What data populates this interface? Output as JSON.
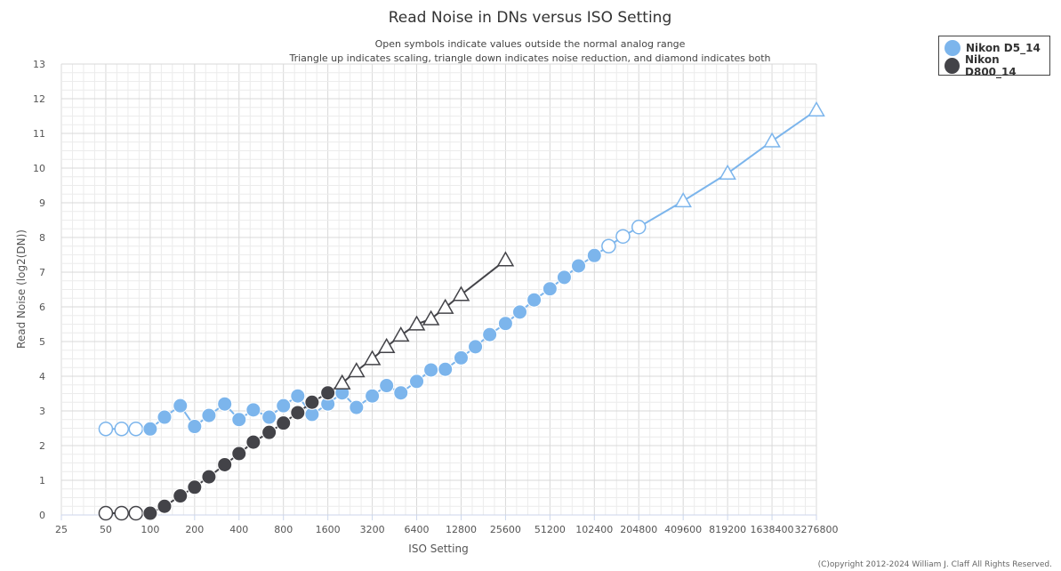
{
  "chart_data": {
    "type": "line",
    "title": "Read Noise in DNs versus ISO Setting",
    "subtitle_lines": [
      "Open symbols indicate values outside the normal analog range",
      "Triangle up indicates scaling, triangle down indicates noise reduction, and diamond indicates both"
    ],
    "xlabel": "ISO Setting",
    "ylabel": "Read Noise (log2(DN))",
    "x_scale": "log2",
    "x_ticks": [
      "25",
      "50",
      "100",
      "200",
      "400",
      "800",
      "1600",
      "3200",
      "6400",
      "12800",
      "25600",
      "51200",
      "102400",
      "204800",
      "409600",
      "819200",
      "1638400",
      "3276800"
    ],
    "ylim": [
      0,
      13
    ],
    "y_ticks": [
      0,
      1,
      2,
      3,
      4,
      5,
      6,
      7,
      8,
      9,
      10,
      11,
      12,
      13
    ],
    "grid": true,
    "legend_position": "top-right",
    "copyright": "(C)opyright 2012-2024 William J. Claff All Rights Reserved.",
    "series": [
      {
        "name": "Nikon D5_14",
        "color": "#7cb5ec",
        "points": [
          {
            "x": 50,
            "y": 2.48,
            "m": "open-circle"
          },
          {
            "x": 64,
            "y": 2.48,
            "m": "open-circle"
          },
          {
            "x": 80,
            "y": 2.48,
            "m": "open-circle"
          },
          {
            "x": 100,
            "y": 2.48,
            "m": "circle"
          },
          {
            "x": 125,
            "y": 2.82,
            "m": "circle"
          },
          {
            "x": 160,
            "y": 3.15,
            "m": "circle"
          },
          {
            "x": 200,
            "y": 2.55,
            "m": "circle"
          },
          {
            "x": 250,
            "y": 2.87,
            "m": "circle"
          },
          {
            "x": 320,
            "y": 3.2,
            "m": "circle"
          },
          {
            "x": 400,
            "y": 2.75,
            "m": "circle"
          },
          {
            "x": 500,
            "y": 3.03,
            "m": "circle"
          },
          {
            "x": 640,
            "y": 2.82,
            "m": "circle"
          },
          {
            "x": 800,
            "y": 3.15,
            "m": "circle"
          },
          {
            "x": 1000,
            "y": 3.43,
            "m": "circle"
          },
          {
            "x": 1250,
            "y": 2.9,
            "m": "circle"
          },
          {
            "x": 1600,
            "y": 3.2,
            "m": "circle"
          },
          {
            "x": 2000,
            "y": 3.52,
            "m": "circle"
          },
          {
            "x": 2500,
            "y": 3.1,
            "m": "circle"
          },
          {
            "x": 3200,
            "y": 3.43,
            "m": "circle"
          },
          {
            "x": 4000,
            "y": 3.73,
            "m": "circle"
          },
          {
            "x": 5000,
            "y": 3.52,
            "m": "circle"
          },
          {
            "x": 6400,
            "y": 3.85,
            "m": "circle"
          },
          {
            "x": 8000,
            "y": 4.18,
            "m": "circle"
          },
          {
            "x": 10000,
            "y": 4.2,
            "m": "circle"
          },
          {
            "x": 12800,
            "y": 4.53,
            "m": "circle"
          },
          {
            "x": 16000,
            "y": 4.85,
            "m": "circle"
          },
          {
            "x": 20000,
            "y": 5.2,
            "m": "circle"
          },
          {
            "x": 25600,
            "y": 5.52,
            "m": "circle"
          },
          {
            "x": 32000,
            "y": 5.85,
            "m": "circle"
          },
          {
            "x": 40000,
            "y": 6.2,
            "m": "circle"
          },
          {
            "x": 51200,
            "y": 6.52,
            "m": "circle"
          },
          {
            "x": 64000,
            "y": 6.85,
            "m": "circle"
          },
          {
            "x": 80000,
            "y": 7.18,
            "m": "circle"
          },
          {
            "x": 102400,
            "y": 7.48,
            "m": "circle"
          },
          {
            "x": 128000,
            "y": 7.75,
            "m": "open-circle"
          },
          {
            "x": 160000,
            "y": 8.03,
            "m": "open-circle"
          },
          {
            "x": 204800,
            "y": 8.3,
            "m": "open-circle"
          },
          {
            "x": 409600,
            "y": 9.05,
            "m": "open-triangle-up"
          },
          {
            "x": 819200,
            "y": 9.85,
            "m": "open-triangle-up"
          },
          {
            "x": 1638400,
            "y": 10.78,
            "m": "open-triangle-up"
          },
          {
            "x": 3276800,
            "y": 11.67,
            "m": "open-triangle-up"
          }
        ]
      },
      {
        "name": "Nikon D800_14",
        "color": "#434348",
        "points": [
          {
            "x": 50,
            "y": 0.05,
            "m": "open-circle"
          },
          {
            "x": 64,
            "y": 0.05,
            "m": "open-circle"
          },
          {
            "x": 80,
            "y": 0.05,
            "m": "open-circle"
          },
          {
            "x": 100,
            "y": 0.05,
            "m": "circle"
          },
          {
            "x": 125,
            "y": 0.25,
            "m": "circle"
          },
          {
            "x": 160,
            "y": 0.55,
            "m": "circle"
          },
          {
            "x": 200,
            "y": 0.8,
            "m": "circle"
          },
          {
            "x": 250,
            "y": 1.1,
            "m": "circle"
          },
          {
            "x": 320,
            "y": 1.45,
            "m": "circle"
          },
          {
            "x": 400,
            "y": 1.77,
            "m": "circle"
          },
          {
            "x": 500,
            "y": 2.1,
            "m": "circle"
          },
          {
            "x": 640,
            "y": 2.38,
            "m": "circle"
          },
          {
            "x": 800,
            "y": 2.65,
            "m": "circle"
          },
          {
            "x": 1000,
            "y": 2.95,
            "m": "circle"
          },
          {
            "x": 1250,
            "y": 3.25,
            "m": "circle"
          },
          {
            "x": 1600,
            "y": 3.52,
            "m": "circle"
          },
          {
            "x": 2000,
            "y": 3.8,
            "m": "open-triangle-up"
          },
          {
            "x": 2500,
            "y": 4.15,
            "m": "open-triangle-up"
          },
          {
            "x": 3200,
            "y": 4.5,
            "m": "open-triangle-up"
          },
          {
            "x": 4000,
            "y": 4.85,
            "m": "open-triangle-up"
          },
          {
            "x": 5000,
            "y": 5.18,
            "m": "open-triangle-up"
          },
          {
            "x": 6400,
            "y": 5.5,
            "m": "open-triangle-up"
          },
          {
            "x": 8000,
            "y": 5.65,
            "m": "open-triangle-up"
          },
          {
            "x": 10000,
            "y": 5.98,
            "m": "open-triangle-up"
          },
          {
            "x": 12800,
            "y": 6.35,
            "m": "open-triangle-up"
          },
          {
            "x": 25600,
            "y": 7.35,
            "m": "open-triangle-up"
          }
        ]
      }
    ]
  }
}
